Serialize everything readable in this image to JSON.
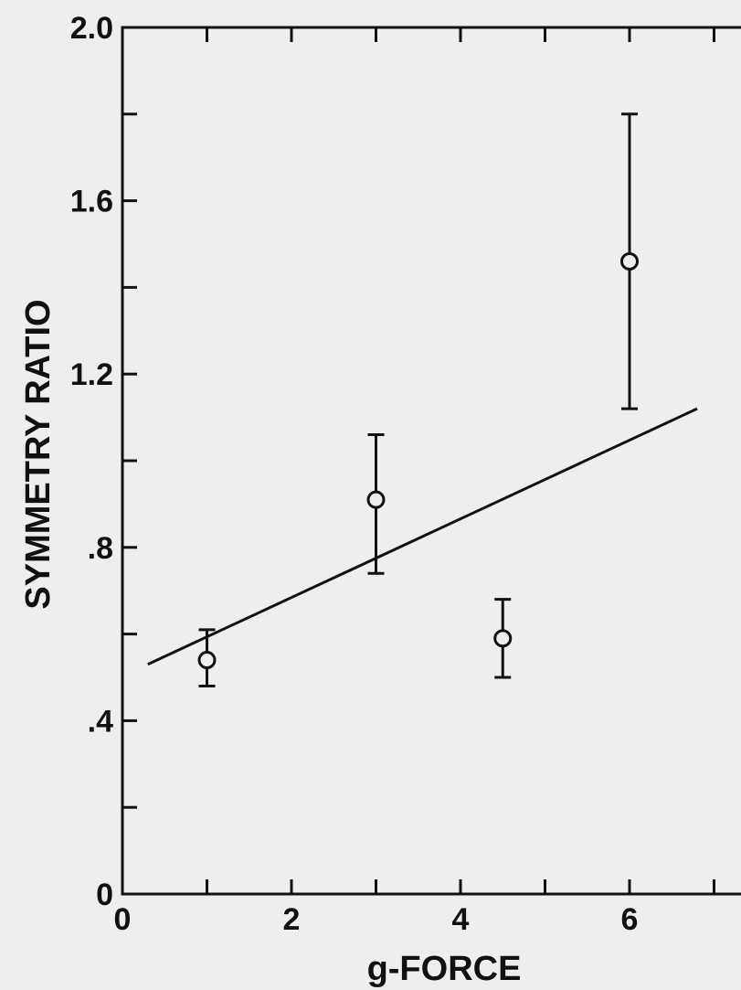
{
  "chart_data": {
    "type": "scatter",
    "title": "",
    "xlabel": "g-FORCE",
    "ylabel": "SYMMETRY RATIO",
    "xlim": [
      0,
      7.5
    ],
    "ylim": [
      0,
      2.0
    ],
    "x_ticks": [
      0,
      2,
      4,
      6
    ],
    "x_tick_labels": [
      "0",
      "2",
      "4",
      "6"
    ],
    "x_minor_ticks": [
      1,
      3,
      5,
      7
    ],
    "y_ticks": [
      0,
      0.4,
      0.8,
      1.2,
      1.6,
      2.0
    ],
    "y_tick_labels": [
      "0",
      ".4",
      ".8",
      "1.2",
      "1.6",
      "2.0"
    ],
    "y_minor_ticks": [
      0.2,
      0.6,
      1.0,
      1.4,
      1.8
    ],
    "grid": false,
    "series": [
      {
        "marker": "open-circle",
        "points": [
          {
            "x": 1.0,
            "y": 0.54,
            "err_low": 0.48,
            "err_high": 0.61
          },
          {
            "x": 3.0,
            "y": 0.91,
            "err_low": 0.74,
            "err_high": 1.06
          },
          {
            "x": 4.5,
            "y": 0.59,
            "err_low": 0.5,
            "err_high": 0.68
          },
          {
            "x": 6.0,
            "y": 1.46,
            "err_low": 1.12,
            "err_high": 1.8
          }
        ]
      }
    ],
    "fit_line": {
      "x": [
        0.3,
        6.8
      ],
      "y": [
        0.53,
        1.12
      ]
    }
  }
}
